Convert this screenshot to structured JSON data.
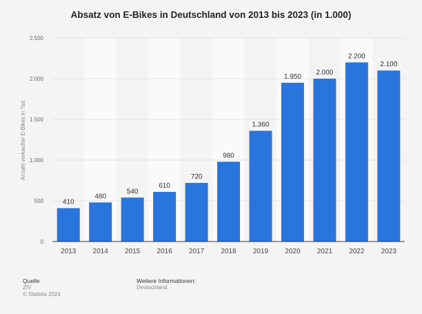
{
  "chart_data": {
    "type": "bar",
    "title": "Absatz von E-Bikes in Deutschland von 2013 bis 2023 (in 1.000)",
    "xlabel": "",
    "ylabel": "Anzahl verkaufter E-Bikes in Tsd.",
    "categories": [
      "2013",
      "2014",
      "2015",
      "2016",
      "2017",
      "2018",
      "2019",
      "2020",
      "2021",
      "2022",
      "2023"
    ],
    "values": [
      410,
      480,
      540,
      610,
      720,
      980,
      1360,
      1950,
      2000,
      2200,
      2100
    ],
    "data_labels": [
      "410",
      "480",
      "540",
      "610",
      "720",
      "980",
      "1.360",
      "1.950",
      "2.000",
      "2.200",
      "2.100"
    ],
    "ylim": [
      0,
      2500
    ],
    "yticks": [
      0,
      500,
      1000,
      1500,
      2000,
      2500
    ],
    "ytick_labels": [
      "0",
      "500",
      "1.000",
      "1.500",
      "2.000",
      "2.500"
    ],
    "grid": true,
    "bar_color": "#2876dd"
  },
  "footer": {
    "source_heading": "Quelle",
    "source": "ZIV",
    "copyright": "© Statista 2024",
    "info_heading": "Weitere Informationen:",
    "info": "Deutschland"
  }
}
